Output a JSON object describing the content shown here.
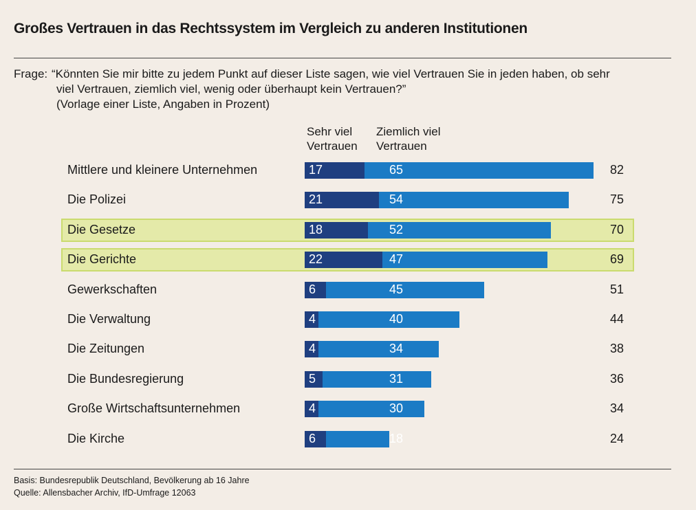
{
  "title": "Großes Vertrauen in das Rechtssystem im Vergleich zu anderen Institutionen",
  "question_label": "Frage:",
  "question_text": "“Könnten Sie mir bitte zu jedem Punkt auf dieser Liste sagen, wie viel Vertrauen Sie in jeden haben, ob sehr viel Vertrauen, ziemlich viel, wenig oder überhaupt kein Vertrauen?”",
  "question_note": "(Vorlage einer Liste, Angaben in Prozent)",
  "footer": {
    "basis": "Basis: Bundesrepublik Deutschland, Bevölkerung ab 16 Jahre",
    "source": "Quelle: Allensbacher Archiv, IfD-Umfrage 12063"
  },
  "colors": {
    "dark": "#1f3f80",
    "light": "#1b7bc5",
    "highlight": "#e4eaa9"
  },
  "chart_data": {
    "type": "bar",
    "orientation": "horizontal",
    "stacked": true,
    "categories": [
      "Mittlere und kleinere Unternehmen",
      "Die Polizei",
      "Die Gesetze",
      "Die Gerichte",
      "Gewerkschaften",
      "Die Verwaltung",
      "Die Zeitungen",
      "Die Bundesregierung",
      "Große Wirtschaftsunternehmen",
      "Die Kirche"
    ],
    "series": [
      {
        "name": "Sehr viel Vertrauen",
        "name_lines": [
          "Sehr viel",
          "Vertrauen"
        ],
        "values": [
          17,
          21,
          18,
          22,
          6,
          4,
          4,
          5,
          4,
          6
        ]
      },
      {
        "name": "Ziemlich viel Vertrauen",
        "name_lines": [
          "Ziemlich viel",
          "Vertrauen"
        ],
        "values": [
          65,
          54,
          52,
          47,
          45,
          40,
          34,
          31,
          30,
          18
        ]
      }
    ],
    "totals": [
      82,
      75,
      70,
      69,
      51,
      44,
      38,
      36,
      34,
      24
    ],
    "highlighted": [
      "Die Gesetze",
      "Die Gerichte"
    ],
    "grid": false
  }
}
